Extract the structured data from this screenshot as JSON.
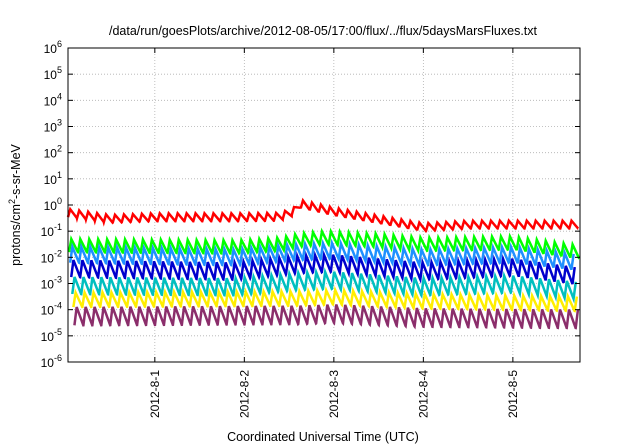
{
  "chart_data": {
    "type": "line",
    "title": "/data/run/goesPlots/archive/2012-08-05/17:00/flux/../flux/5daysMarsFluxes.txt",
    "xlabel": "Coordinated Universal Time (UTC)",
    "ylabel": {
      "base": "protons/cm",
      "sup": "2",
      "rest": "-s-sr-MeV"
    },
    "yscale": "log",
    "ylim_exp": [
      -6,
      6
    ],
    "y_ticks": [
      {
        "base": "10",
        "exp": "-6",
        "value_exp": -6
      },
      {
        "base": "10",
        "exp": "-5",
        "value_exp": -5
      },
      {
        "base": "10",
        "exp": "-4",
        "value_exp": -4
      },
      {
        "base": "10",
        "exp": "-3",
        "value_exp": -3
      },
      {
        "base": "10",
        "exp": "-2",
        "value_exp": -2
      },
      {
        "base": "10",
        "exp": "-1",
        "value_exp": -1
      },
      {
        "base": "10",
        "exp": "0",
        "value_exp": 0
      },
      {
        "base": "10",
        "exp": "1",
        "value_exp": 1
      },
      {
        "base": "10",
        "exp": "2",
        "value_exp": 2
      },
      {
        "base": "10",
        "exp": "3",
        "value_exp": 3
      },
      {
        "base": "10",
        "exp": "4",
        "value_exp": 4
      },
      {
        "base": "10",
        "exp": "5",
        "value_exp": 5
      },
      {
        "base": "10",
        "exp": "6",
        "value_exp": 6
      }
    ],
    "x_range_days": [
      -0.97,
      4.75
    ],
    "x_ticks": [
      {
        "label": "2012-8-1",
        "day": 0
      },
      {
        "label": "2012-8-2",
        "day": 1
      },
      {
        "label": "2012-8-3",
        "day": 2
      },
      {
        "label": "2012-8-4",
        "day": 3
      },
      {
        "label": "2012-8-5",
        "day": 4
      }
    ],
    "grid": true,
    "sawtooth": {
      "period_days": 0.1,
      "rise_fraction": 0.25
    },
    "series": [
      {
        "color": "#ff0000",
        "lw": 2.5,
        "amp_exp": 0.3,
        "peak_exp": [
          [
            -0.97,
            -0.15
          ],
          [
            -0.5,
            -0.38
          ],
          [
            0.0,
            -0.32
          ],
          [
            0.9,
            -0.32
          ],
          [
            1.4,
            -0.3
          ],
          [
            1.55,
            -0.1
          ],
          [
            1.62,
            0.2
          ],
          [
            2.0,
            -0.1
          ],
          [
            2.5,
            -0.4
          ],
          [
            3.0,
            -0.7
          ],
          [
            3.5,
            -0.6
          ],
          [
            4.0,
            -0.6
          ],
          [
            4.75,
            -0.6
          ]
        ]
      },
      {
        "color": "#00ff00",
        "lw": 2.5,
        "amp_exp": 0.5,
        "peak_exp": [
          [
            -0.97,
            -1.3
          ],
          [
            0.9,
            -1.35
          ],
          [
            1.4,
            -1.25
          ],
          [
            1.6,
            -1.1
          ],
          [
            1.9,
            -1.0
          ],
          [
            2.5,
            -1.1
          ],
          [
            3.0,
            -1.25
          ],
          [
            4.0,
            -1.2
          ],
          [
            4.75,
            -1.55
          ]
        ]
      },
      {
        "color": "#1e90ff",
        "lw": 2.5,
        "amp_exp": 0.6,
        "peak_exp": [
          [
            -0.97,
            -1.6
          ],
          [
            0.9,
            -1.7
          ],
          [
            1.6,
            -1.5
          ],
          [
            2.0,
            -1.45
          ],
          [
            3.0,
            -1.7
          ],
          [
            4.0,
            -1.6
          ],
          [
            4.75,
            -1.9
          ]
        ]
      },
      {
        "color": "#0000cd",
        "lw": 2.5,
        "amp_exp": 0.65,
        "peak_exp": [
          [
            -0.97,
            -2.1
          ],
          [
            0.9,
            -2.2
          ],
          [
            1.6,
            -1.95
          ],
          [
            2.0,
            -1.9
          ],
          [
            3.0,
            -2.2
          ],
          [
            4.0,
            -2.05
          ],
          [
            4.75,
            -2.4
          ]
        ]
      },
      {
        "color": "#00bfbf",
        "lw": 2.5,
        "amp_exp": 0.65,
        "peak_exp": [
          [
            -0.97,
            -2.75
          ],
          [
            0.9,
            -2.8
          ],
          [
            1.6,
            -2.6
          ],
          [
            2.0,
            -2.55
          ],
          [
            3.0,
            -2.8
          ],
          [
            4.0,
            -2.7
          ],
          [
            4.75,
            -2.95
          ]
        ]
      },
      {
        "color": "#ffee00",
        "lw": 2.5,
        "amp_exp": 0.55,
        "peak_exp": [
          [
            -0.97,
            -3.35
          ],
          [
            1.6,
            -3.3
          ],
          [
            2.0,
            -3.25
          ],
          [
            3.0,
            -3.4
          ],
          [
            4.75,
            -3.5
          ]
        ]
      },
      {
        "color": "#8b2e6b",
        "lw": 2.5,
        "amp_exp": 0.7,
        "peak_exp": [
          [
            -0.97,
            -3.9
          ],
          [
            1.6,
            -3.85
          ],
          [
            2.0,
            -3.8
          ],
          [
            3.0,
            -3.95
          ],
          [
            4.75,
            -4.0
          ]
        ]
      }
    ]
  }
}
